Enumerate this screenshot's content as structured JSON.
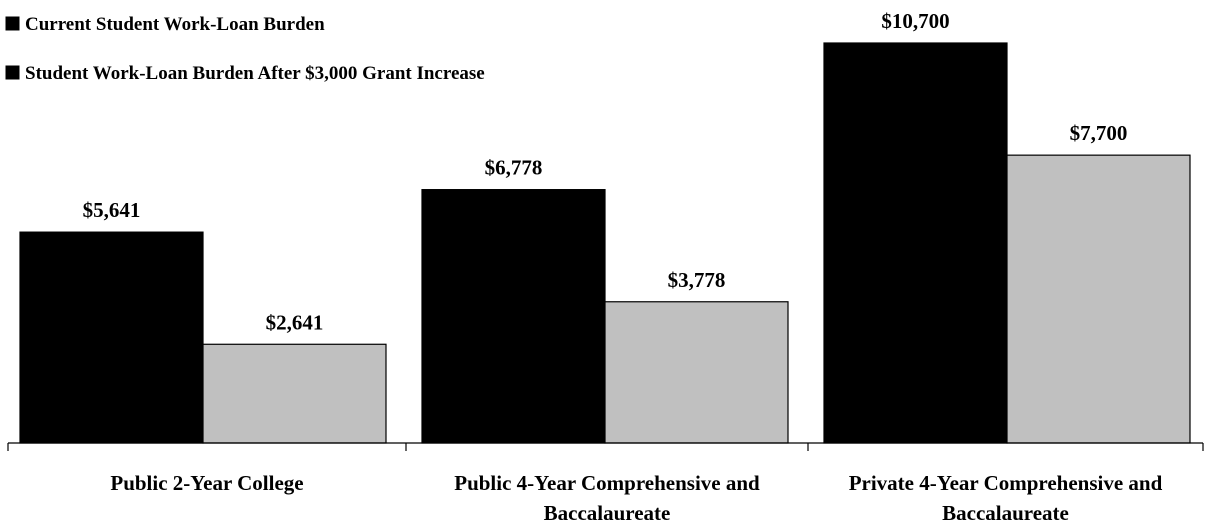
{
  "legend": {
    "items": [
      {
        "label": "Current Student Work-Loan Burden",
        "color": "#000000"
      },
      {
        "label": "Student Work-Loan Burden After $3,000 Grant Increase",
        "color": "#c0c0c0"
      }
    ],
    "placement": "top-left"
  },
  "chart_data": {
    "type": "bar",
    "title": "",
    "xlabel": "",
    "ylabel": "",
    "categories": [
      [
        "Public 2-Year College"
      ],
      [
        "Public 4-Year Comprehensive and",
        "Baccalaureate"
      ],
      [
        "Private 4-Year Comprehensive and",
        "Baccalaureate"
      ]
    ],
    "series": [
      {
        "name": "Current Student Work-Loan Burden",
        "color": "#000000",
        "values": [
          5641,
          6778,
          10700
        ],
        "labels": [
          "$5,641",
          "$6,778",
          "$10,700"
        ]
      },
      {
        "name": "Student Work-Loan Burden After $3,000 Grant Increase",
        "color": "#c0c0c0",
        "values": [
          2641,
          3778,
          7700
        ],
        "labels": [
          "$2,641",
          "$3,778",
          "$7,700"
        ]
      }
    ],
    "ylim": [
      0,
      10700
    ],
    "grid": false
  }
}
